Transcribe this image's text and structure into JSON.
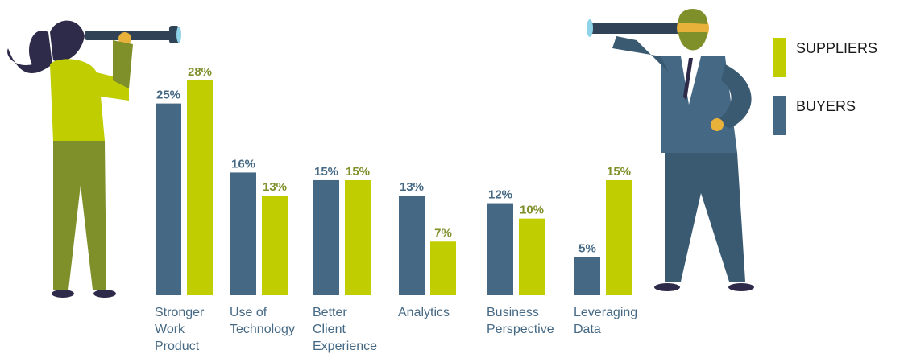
{
  "chart_data": {
    "type": "bar",
    "categories": [
      "Stronger\nWork\nProduct",
      "Use of\nTechnology",
      "Better\nClient\nExperience",
      "Analytics",
      "Business\nPerspective",
      "Leveraging\nData"
    ],
    "series": [
      {
        "name": "BUYERS",
        "color": "#456985",
        "values": [
          25,
          16,
          15,
          13,
          12,
          5
        ],
        "value_labels": [
          "25%",
          "16%",
          "15%",
          "13%",
          "12%",
          "5%"
        ]
      },
      {
        "name": "SUPPLIERS",
        "color": "#c0cd00",
        "values": [
          28,
          13,
          15,
          7,
          10,
          15
        ],
        "value_labels": [
          "28%",
          "13%",
          "15%",
          "7%",
          "10%",
          "15%"
        ]
      }
    ],
    "legend": "top-right"
  }
}
